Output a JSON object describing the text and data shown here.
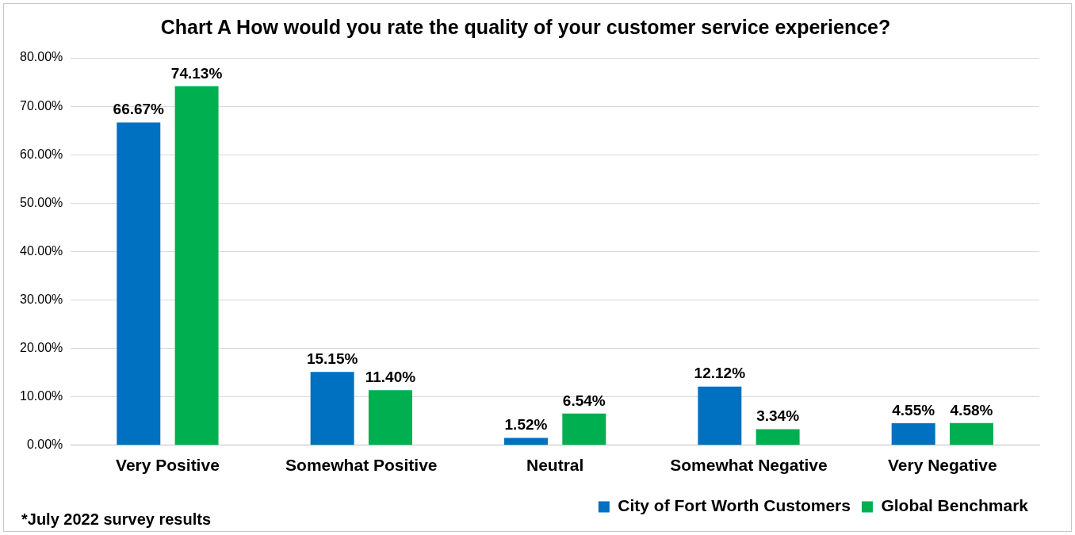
{
  "chart_data": {
    "type": "bar",
    "title": "Chart A How would you rate the quality of your customer service experience?",
    "categories": [
      "Very Positive",
      "Somewhat Positive",
      "Neutral",
      "Somewhat Negative",
      "Very Negative"
    ],
    "series": [
      {
        "name": "City of Fort Worth Customers",
        "color": "#0070c0",
        "values": [
          66.67,
          15.15,
          1.52,
          12.12,
          4.55
        ],
        "value_labels": [
          "66.67%",
          "15.15%",
          "1.52%",
          "12.12%",
          "4.55%"
        ]
      },
      {
        "name": "Global Benchmark",
        "color": "#00b050",
        "values": [
          74.13,
          11.4,
          6.54,
          3.34,
          4.58
        ],
        "value_labels": [
          "74.13%",
          "11.40%",
          "6.54%",
          "3.34%",
          "4.58%"
        ]
      }
    ],
    "ylim": [
      0,
      80
    ],
    "yticks": [
      {
        "value": 0,
        "label": "0.00%"
      },
      {
        "value": 10,
        "label": "10.00%"
      },
      {
        "value": 20,
        "label": "20.00%"
      },
      {
        "value": 30,
        "label": "30.00%"
      },
      {
        "value": 40,
        "label": "40.00%"
      },
      {
        "value": 50,
        "label": "50.00%"
      },
      {
        "value": 60,
        "label": "60.00%"
      },
      {
        "value": 70,
        "label": "70.00%"
      },
      {
        "value": 80,
        "label": "80.00%"
      }
    ],
    "grid": "y",
    "legend": "bottom right",
    "annotations": [
      "*July 2022 survey results"
    ]
  }
}
